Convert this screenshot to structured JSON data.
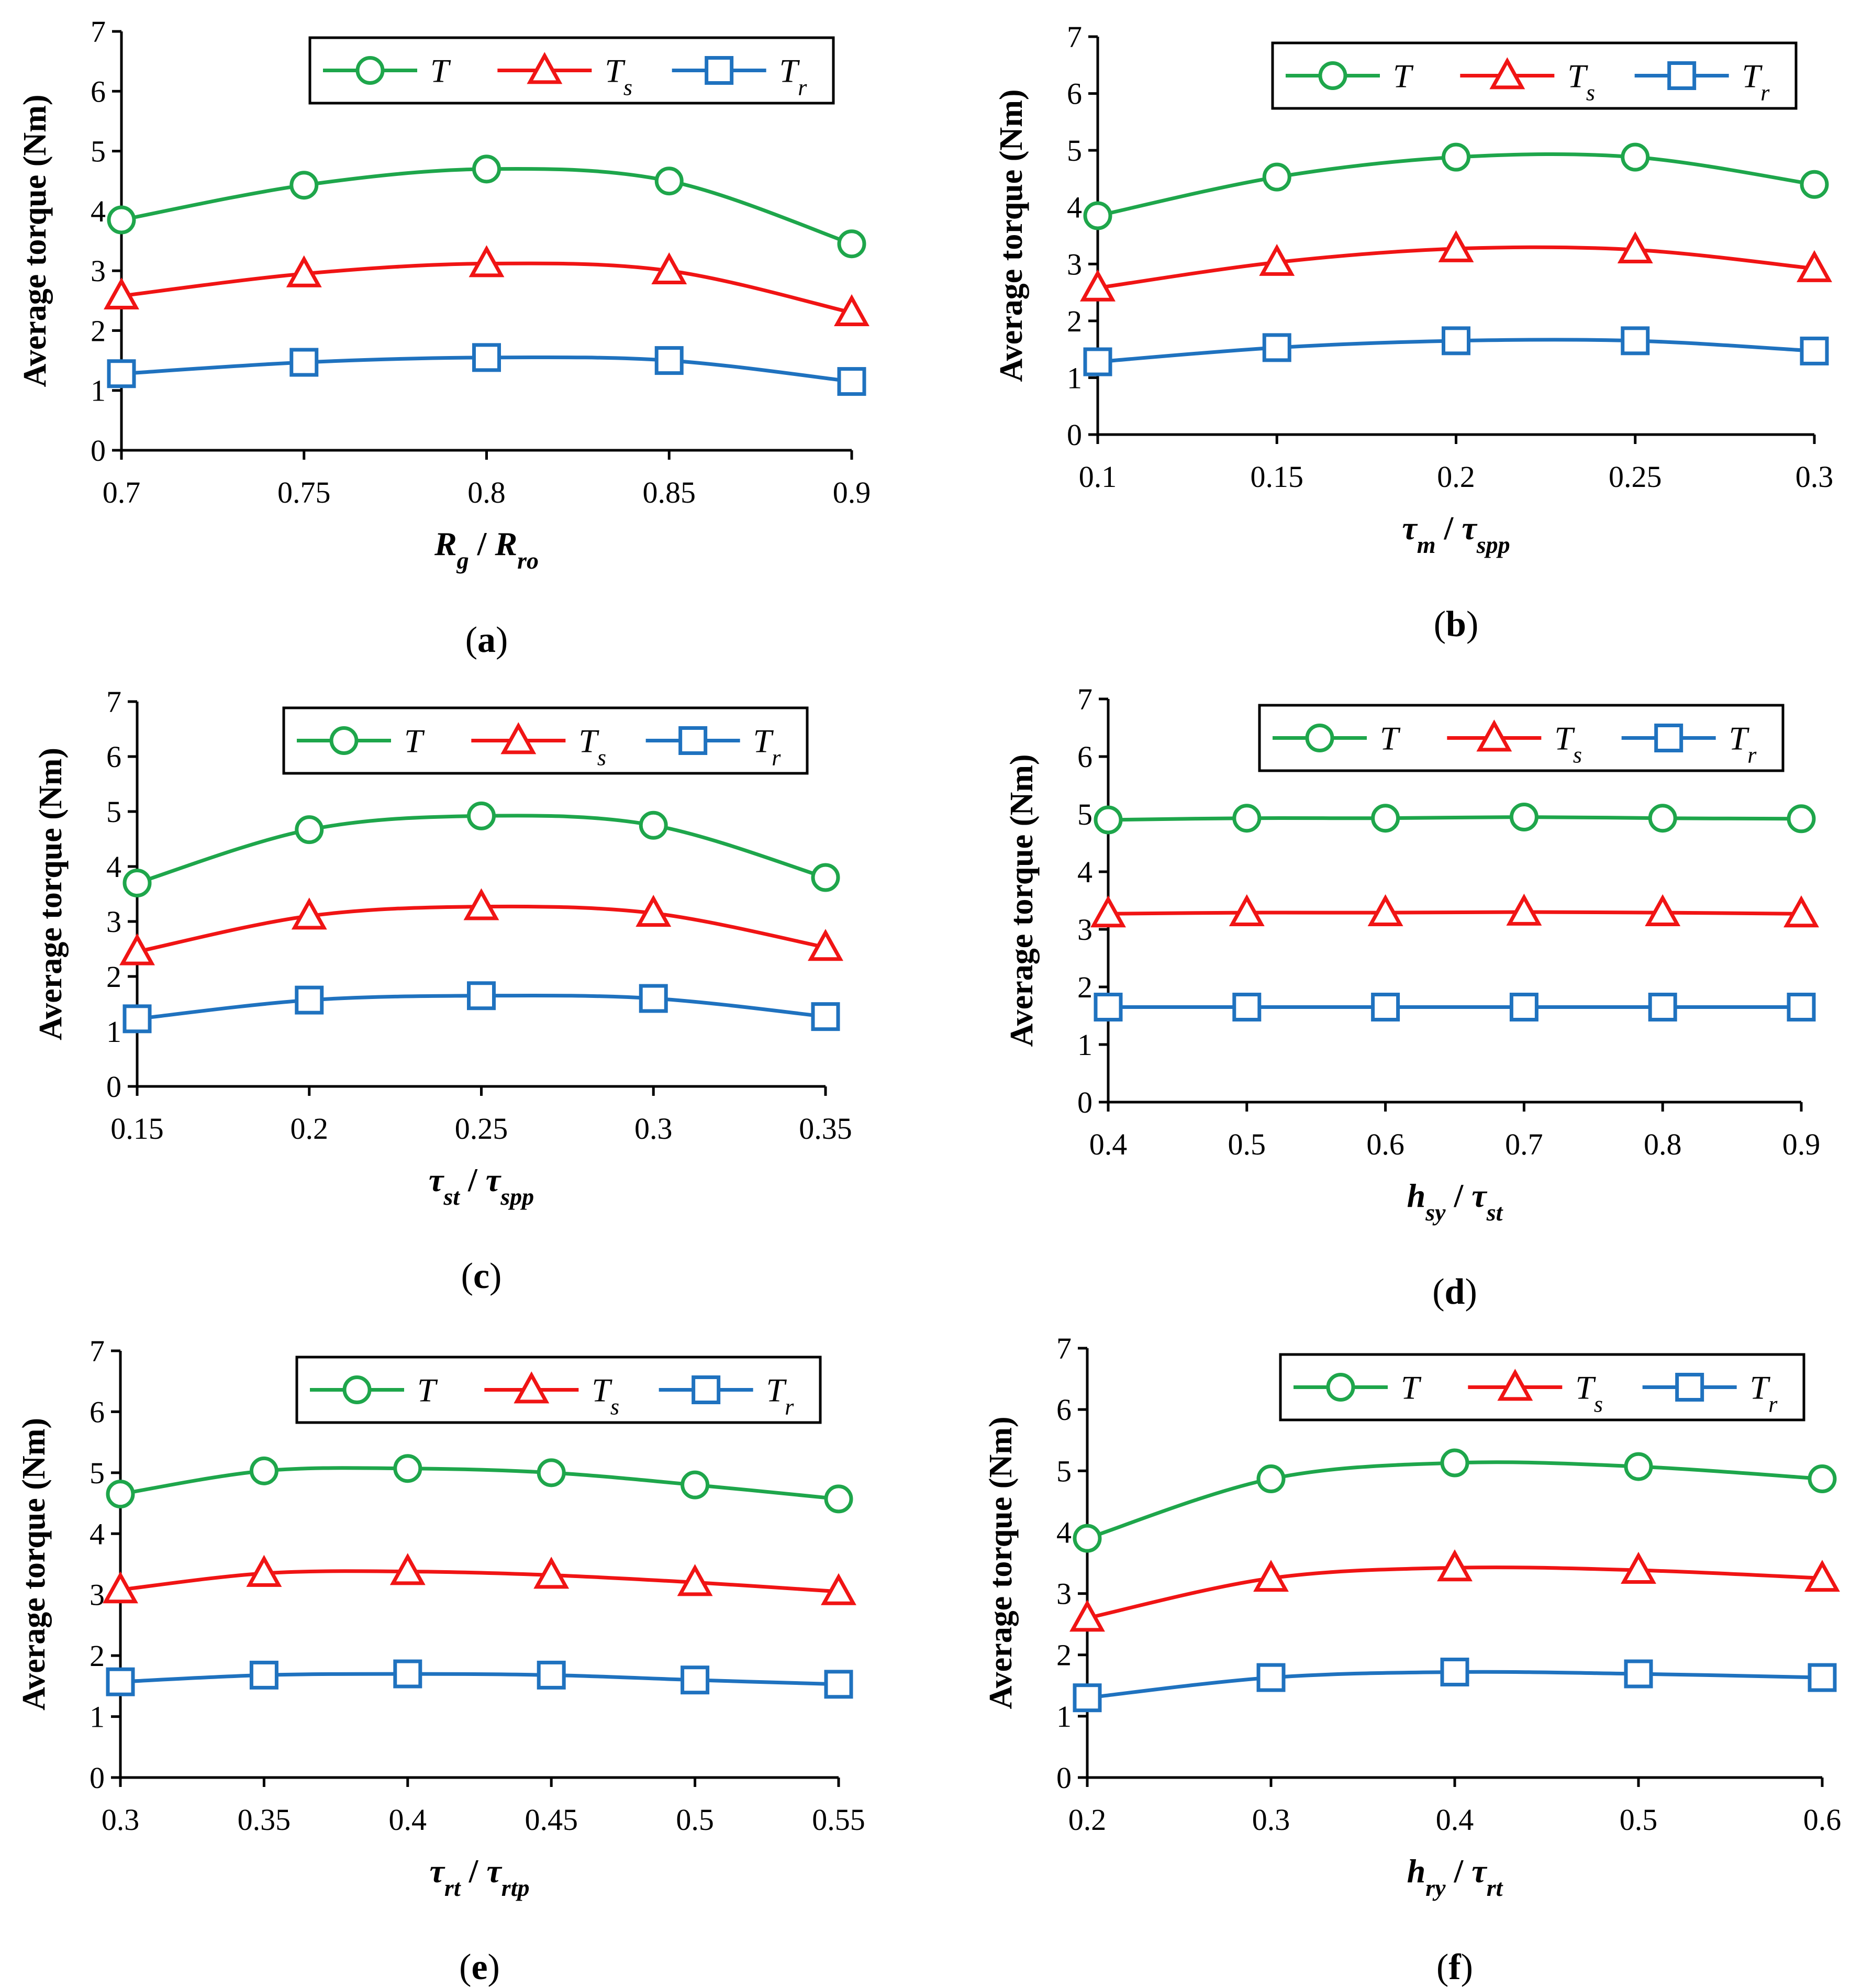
{
  "figure": {
    "series_colors": {
      "T": "#1ea64b",
      "Ts": "#f01414",
      "Tr": "#1f72bf"
    },
    "series_markers": {
      "T": "circle",
      "Ts": "triangle",
      "Tr": "square"
    }
  },
  "chart_data": [
    {
      "type": "line",
      "caption": "a",
      "ylabel": "Average torque  (Nm)",
      "xlabel": {
        "main": "R",
        "sub": "g",
        "sep": " / ",
        "main2": "R",
        "sub2": "ro"
      },
      "x": [
        0.7,
        0.75,
        0.8,
        0.85,
        0.9
      ],
      "xticks": [
        "0.7",
        "0.75",
        "0.8",
        "0.85",
        "0.9"
      ],
      "xlim": [
        0.7,
        0.9
      ],
      "ylim": [
        0,
        7
      ],
      "yticks": [
        "0",
        "1",
        "2",
        "3",
        "4",
        "5",
        "6",
        "7"
      ],
      "grid": false,
      "legend": "top-right",
      "series": [
        {
          "name": "T",
          "sub": "",
          "values": [
            3.85,
            4.43,
            4.7,
            4.5,
            3.45
          ]
        },
        {
          "name": "T",
          "sub": "s",
          "values": [
            2.58,
            2.95,
            3.12,
            3.0,
            2.3
          ]
        },
        {
          "name": "T",
          "sub": "r",
          "values": [
            1.28,
            1.47,
            1.55,
            1.5,
            1.15
          ]
        }
      ]
    },
    {
      "type": "line",
      "caption": "b",
      "ylabel": "Average torque  (Nm)",
      "xlabel": {
        "main": "τ",
        "sub": "m",
        "sep": " / ",
        "main2": "τ",
        "sub2": "spp"
      },
      "x": [
        0.1,
        0.15,
        0.2,
        0.25,
        0.3
      ],
      "xticks": [
        "0.1",
        "0.15",
        "0.2",
        "0.25",
        "0.3"
      ],
      "xlim": [
        0.1,
        0.3
      ],
      "ylim": [
        0,
        7
      ],
      "yticks": [
        "0",
        "1",
        "2",
        "3",
        "4",
        "5",
        "6",
        "7"
      ],
      "grid": false,
      "legend": "top-right",
      "series": [
        {
          "name": "T",
          "sub": "",
          "values": [
            3.85,
            4.53,
            4.88,
            4.88,
            4.4
          ]
        },
        {
          "name": "T",
          "sub": "s",
          "values": [
            2.58,
            3.03,
            3.27,
            3.25,
            2.92
          ]
        },
        {
          "name": "T",
          "sub": "r",
          "values": [
            1.28,
            1.53,
            1.65,
            1.65,
            1.47
          ]
        }
      ]
    },
    {
      "type": "line",
      "caption": "c",
      "ylabel": "Average torque  (Nm)",
      "xlabel": {
        "main": "τ",
        "sub": "st",
        "sep": " / ",
        "main2": "τ",
        "sub2": "spp"
      },
      "x": [
        0.15,
        0.2,
        0.25,
        0.3,
        0.35
      ],
      "xticks": [
        "0.15",
        "0.2",
        "0.25",
        "0.3",
        "0.35"
      ],
      "xlim": [
        0.15,
        0.35
      ],
      "ylim": [
        0,
        7
      ],
      "yticks": [
        "0",
        "1",
        "2",
        "3",
        "4",
        "5",
        "6",
        "7"
      ],
      "grid": false,
      "legend": "top-right",
      "series": [
        {
          "name": "T",
          "sub": "",
          "values": [
            3.7,
            4.67,
            4.92,
            4.75,
            3.8
          ]
        },
        {
          "name": "T",
          "sub": "s",
          "values": [
            2.45,
            3.1,
            3.27,
            3.15,
            2.53
          ]
        },
        {
          "name": "T",
          "sub": "r",
          "values": [
            1.23,
            1.57,
            1.65,
            1.6,
            1.27
          ]
        }
      ]
    },
    {
      "type": "line",
      "caption": "d",
      "ylabel": "Average torque  (Nm)",
      "xlabel": {
        "main": "h",
        "sub": "sy",
        "sep": " / ",
        "main2": "τ",
        "sub2": "st"
      },
      "x": [
        0.4,
        0.5,
        0.6,
        0.7,
        0.8,
        0.9
      ],
      "xticks": [
        "0.4",
        "0.5",
        "0.6",
        "0.7",
        "0.8",
        "0.9"
      ],
      "xlim": [
        0.4,
        0.9
      ],
      "ylim": [
        0,
        7
      ],
      "yticks": [
        "0",
        "1",
        "2",
        "3",
        "4",
        "5",
        "6",
        "7"
      ],
      "grid": false,
      "legend": "top-right",
      "series": [
        {
          "name": "T",
          "sub": "",
          "values": [
            4.9,
            4.93,
            4.93,
            4.95,
            4.93,
            4.92
          ]
        },
        {
          "name": "T",
          "sub": "s",
          "values": [
            3.27,
            3.29,
            3.29,
            3.3,
            3.29,
            3.27
          ]
        },
        {
          "name": "T",
          "sub": "r",
          "values": [
            1.65,
            1.65,
            1.65,
            1.65,
            1.65,
            1.65
          ]
        }
      ]
    },
    {
      "type": "line",
      "caption": "e",
      "ylabel": "Average torque  (Nm)",
      "xlabel": {
        "main": "τ",
        "sub": "rt",
        "sep": " / ",
        "main2": "τ",
        "sub2": "rtp"
      },
      "x": [
        0.3,
        0.35,
        0.4,
        0.45,
        0.5,
        0.55
      ],
      "xticks": [
        "0.3",
        "0.35",
        "0.4",
        "0.45",
        "0.5",
        "0.55"
      ],
      "xlim": [
        0.3,
        0.55
      ],
      "ylim": [
        0,
        7
      ],
      "yticks": [
        "0",
        "1",
        "2",
        "3",
        "4",
        "5",
        "6",
        "7"
      ],
      "grid": false,
      "legend": "top-right",
      "series": [
        {
          "name": "T",
          "sub": "",
          "values": [
            4.65,
            5.03,
            5.07,
            5.0,
            4.8,
            4.57
          ]
        },
        {
          "name": "T",
          "sub": "s",
          "values": [
            3.08,
            3.35,
            3.38,
            3.32,
            3.2,
            3.05
          ]
        },
        {
          "name": "T",
          "sub": "r",
          "values": [
            1.57,
            1.68,
            1.7,
            1.68,
            1.6,
            1.53
          ]
        }
      ]
    },
    {
      "type": "line",
      "caption": "f",
      "ylabel": "Average torque  (Nm)",
      "xlabel": {
        "main": "h",
        "sub": "ry",
        "sep": " / ",
        "main2": "τ",
        "sub2": "rt"
      },
      "x": [
        0.2,
        0.3,
        0.4,
        0.5,
        0.6
      ],
      "xticks": [
        "0.2",
        "0.3",
        "0.4",
        "0.5",
        "0.6"
      ],
      "xlim": [
        0.2,
        0.6
      ],
      "ylim": [
        0,
        7
      ],
      "yticks": [
        "0",
        "1",
        "2",
        "3",
        "4",
        "5",
        "6",
        "7"
      ],
      "grid": false,
      "legend": "top-right",
      "series": [
        {
          "name": "T",
          "sub": "",
          "values": [
            3.9,
            4.87,
            5.13,
            5.07,
            4.87
          ]
        },
        {
          "name": "T",
          "sub": "s",
          "values": [
            2.6,
            3.25,
            3.42,
            3.38,
            3.25
          ]
        },
        {
          "name": "T",
          "sub": "r",
          "values": [
            1.3,
            1.63,
            1.72,
            1.69,
            1.63
          ]
        }
      ]
    }
  ]
}
